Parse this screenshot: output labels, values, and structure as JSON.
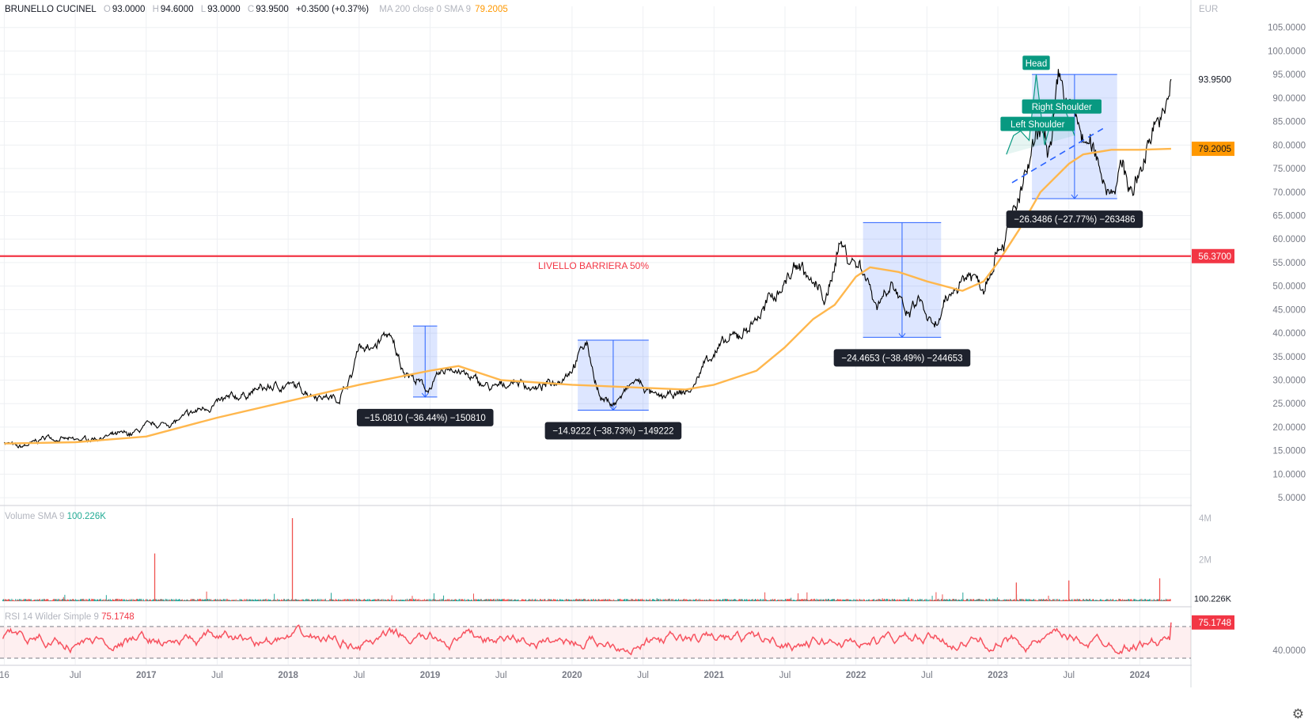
{
  "header": {
    "symbol": "BRUNELLO CUCINEL",
    "open_label": "O",
    "open": "93.0000",
    "high_label": "H",
    "high": "94.6000",
    "low_label": "L",
    "low": "93.0000",
    "close_label": "C",
    "close": "93.9500",
    "change": "+0.3500 (+0.37%)",
    "ma_label": "MA 200 close 0 SMA 9",
    "ma_value": "79.2005"
  },
  "volume_legend": {
    "label": "Volume SMA 9",
    "value": "100.226K"
  },
  "rsi_legend": {
    "label": "RSI 14 Wilder Simple 9",
    "value": "75.1748"
  },
  "chart_data": {
    "type": "line",
    "price_axis": {
      "currency": "EUR",
      "ticks": [
        "105.0000",
        "100.0000",
        "95.0000",
        "90.0000",
        "85.0000",
        "80.0000",
        "75.0000",
        "70.0000",
        "65.0000",
        "60.0000",
        "55.0000",
        "50.0000",
        "45.0000",
        "40.0000",
        "35.0000",
        "30.0000",
        "25.0000",
        "20.0000",
        "15.0000",
        "10.0000",
        "5.0000"
      ],
      "tick_values": [
        105,
        100,
        95,
        90,
        85,
        80,
        75,
        70,
        65,
        60,
        55,
        50,
        45,
        40,
        35,
        30,
        25,
        20,
        15,
        10,
        5
      ],
      "range": [
        3.5,
        109.5
      ]
    },
    "time_axis": {
      "labels": [
        "16",
        "Jul",
        "2017",
        "Jul",
        "2018",
        "Jul",
        "2019",
        "Jul",
        "2020",
        "Jul",
        "2021",
        "Jul",
        "2022",
        "Jul",
        "2023",
        "Jul",
        "2024"
      ],
      "label_times": [
        2016.0,
        2016.5,
        2017.0,
        2017.5,
        2018.0,
        2018.5,
        2019.0,
        2019.5,
        2020.0,
        2020.5,
        2021.0,
        2021.5,
        2022.0,
        2022.5,
        2023.0,
        2023.5,
        2024.0
      ],
      "range": [
        2015.97,
        2024.36
      ]
    },
    "series": [
      {
        "name": "BRUNELLO CUCINEL",
        "color": "#000000",
        "points": [
          [
            2016.0,
            17
          ],
          [
            2016.1,
            15.5
          ],
          [
            2016.2,
            16.5
          ],
          [
            2016.3,
            18
          ],
          [
            2016.5,
            17
          ],
          [
            2016.7,
            18
          ],
          [
            2016.9,
            18.5
          ],
          [
            2017.0,
            20
          ],
          [
            2017.2,
            21
          ],
          [
            2017.4,
            24
          ],
          [
            2017.6,
            26
          ],
          [
            2017.8,
            28
          ],
          [
            2018.0,
            29
          ],
          [
            2018.2,
            27
          ],
          [
            2018.35,
            26
          ],
          [
            2018.45,
            31
          ],
          [
            2018.5,
            38
          ],
          [
            2018.58,
            36
          ],
          [
            2018.7,
            40
          ],
          [
            2018.8,
            33
          ],
          [
            2018.9,
            30
          ],
          [
            2018.98,
            28
          ],
          [
            2019.15,
            33
          ],
          [
            2019.3,
            30
          ],
          [
            2019.45,
            28
          ],
          [
            2019.6,
            30
          ],
          [
            2019.75,
            28
          ],
          [
            2019.9,
            30
          ],
          [
            2020.0,
            33
          ],
          [
            2020.1,
            38
          ],
          [
            2020.2,
            26
          ],
          [
            2020.3,
            25
          ],
          [
            2020.45,
            30
          ],
          [
            2020.6,
            26
          ],
          [
            2020.75,
            27
          ],
          [
            2020.85,
            28
          ],
          [
            2020.95,
            35
          ],
          [
            2021.1,
            38
          ],
          [
            2021.2,
            40
          ],
          [
            2021.35,
            45
          ],
          [
            2021.5,
            51
          ],
          [
            2021.6,
            55
          ],
          [
            2021.7,
            50
          ],
          [
            2021.8,
            47
          ],
          [
            2021.88,
            60
          ],
          [
            2021.95,
            56
          ],
          [
            2022.05,
            54
          ],
          [
            2022.15,
            46
          ],
          [
            2022.25,
            52
          ],
          [
            2022.35,
            43
          ],
          [
            2022.45,
            47
          ],
          [
            2022.55,
            40
          ],
          [
            2022.7,
            50
          ],
          [
            2022.8,
            53
          ],
          [
            2022.9,
            50
          ],
          [
            2022.98,
            58
          ],
          [
            2023.05,
            61
          ],
          [
            2023.15,
            68
          ],
          [
            2023.25,
            78
          ],
          [
            2023.3,
            82
          ],
          [
            2023.38,
            79
          ],
          [
            2023.43,
            93
          ],
          [
            2023.5,
            88
          ],
          [
            2023.55,
            85
          ],
          [
            2023.62,
            80
          ],
          [
            2023.7,
            77
          ],
          [
            2023.78,
            71
          ],
          [
            2023.88,
            75
          ],
          [
            2023.95,
            70
          ],
          [
            2024.02,
            76
          ],
          [
            2024.1,
            86
          ],
          [
            2024.18,
            85
          ],
          [
            2024.22,
            94
          ]
        ]
      },
      {
        "name": "MA 200 close 0 SMA 9",
        "color": "#ffb74d",
        "points": [
          [
            2016.0,
            16.5
          ],
          [
            2016.5,
            16.8
          ],
          [
            2017.0,
            18
          ],
          [
            2017.5,
            22
          ],
          [
            2018.0,
            25.5
          ],
          [
            2018.5,
            29
          ],
          [
            2019.0,
            32
          ],
          [
            2019.2,
            33
          ],
          [
            2019.5,
            30
          ],
          [
            2020.0,
            29
          ],
          [
            2020.4,
            28.5
          ],
          [
            2020.8,
            28
          ],
          [
            2021.0,
            29
          ],
          [
            2021.3,
            32
          ],
          [
            2021.5,
            37
          ],
          [
            2021.7,
            43
          ],
          [
            2021.85,
            46
          ],
          [
            2022.0,
            52
          ],
          [
            2022.1,
            54
          ],
          [
            2022.3,
            53
          ],
          [
            2022.5,
            51
          ],
          [
            2022.75,
            49
          ],
          [
            2022.9,
            51
          ],
          [
            2023.0,
            55
          ],
          [
            2023.15,
            62
          ],
          [
            2023.3,
            70
          ],
          [
            2023.5,
            76
          ],
          [
            2023.6,
            78
          ],
          [
            2023.8,
            79
          ],
          [
            2024.0,
            79
          ],
          [
            2024.22,
            79.2
          ]
        ]
      }
    ],
    "horizontal_line": {
      "value": 56.37,
      "label": "LIVELLO BARRIERA 50%",
      "axis_label": "56.3700",
      "color": "#f23645"
    },
    "last_price": {
      "value": 93.95,
      "label": "93.9500"
    },
    "ma_last": {
      "value": 79.2005,
      "label": "79.2005"
    },
    "measure_boxes": [
      {
        "t0": 2018.88,
        "t1": 2019.05,
        "p0": 41.5,
        "p1": 26.4,
        "label": "−15.0810 (−36.44%) −150810"
      },
      {
        "t0": 2020.04,
        "t1": 2020.54,
        "p0": 38.5,
        "p1": 23.6,
        "label": "−14.9222 (−38.73%) −149222"
      },
      {
        "t0": 2022.05,
        "t1": 2022.6,
        "p0": 63.5,
        "p1": 39.1,
        "label": "−24.4653 (−38.49%) −244653"
      },
      {
        "t0": 2023.24,
        "t1": 2023.84,
        "p0": 95.0,
        "p1": 68.6,
        "label": "−26.3486 (−27.77%) −263486"
      }
    ],
    "pattern_labels": [
      {
        "t": 2023.28,
        "p": 84.5,
        "label": "Left Shoulder"
      },
      {
        "t": 2023.27,
        "p": 97.5,
        "label": "Head"
      },
      {
        "t": 2023.45,
        "p": 88.2,
        "label": "Right Shoulder"
      }
    ],
    "volume": {
      "ticks": [
        "4M",
        "2M"
      ],
      "tick_values": [
        4000000,
        2000000
      ],
      "last_label": "100.226K",
      "spikes": [
        [
          2017.06,
          2300000
        ],
        [
          2018.03,
          4000000
        ],
        [
          2023.13,
          900000
        ],
        [
          2023.5,
          1000000
        ],
        [
          2024.14,
          1100000
        ]
      ]
    },
    "rsi": {
      "ticks": [
        "40.0000"
      ],
      "tick_values": [
        40
      ],
      "range": [
        22,
        93
      ],
      "band": [
        30,
        70
      ],
      "last": {
        "value": 75.1748,
        "label": "75.1748"
      }
    }
  },
  "colors": {
    "price_line": "#000000",
    "ma_line": "#ffb74d",
    "barrier": "#f23645",
    "measure_box": "#2962ff",
    "pattern": "#089981",
    "rsi_line": "#f7525f",
    "volume_up": "#26a69a",
    "volume_down": "#ef5350"
  },
  "settings_icon": "gear-icon"
}
